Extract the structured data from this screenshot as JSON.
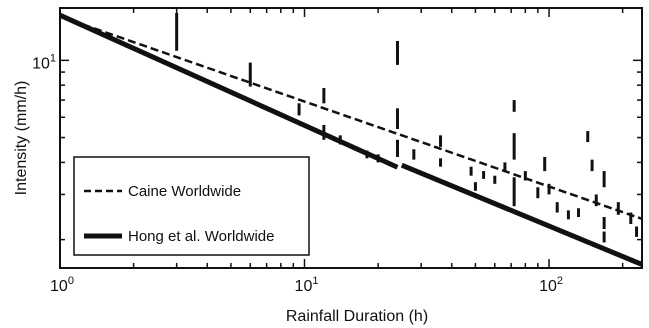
{
  "chart_data": {
    "type": "scatter",
    "xlabel": "Rainfall Duration (h)",
    "ylabel": "Intensity (mm/h)",
    "x_scale": "log",
    "y_scale": "log",
    "xlim": [
      1,
      240
    ],
    "ylim": [
      1.55,
      16
    ],
    "x_ticks": [
      {
        "value": 1,
        "base": "10",
        "exp": "0"
      },
      {
        "value": 10,
        "base": "10",
        "exp": "1"
      },
      {
        "value": 100,
        "base": "10",
        "exp": "2"
      }
    ],
    "y_ticks": [
      {
        "value": 10,
        "base": "10",
        "exp": "1"
      }
    ],
    "y_minor_ticks": [
      2,
      3,
      4,
      5,
      6,
      7,
      8,
      9
    ],
    "legend": {
      "position": "bottom-left",
      "entries": [
        {
          "label": "Caine Worldwide",
          "style": "dashed"
        },
        {
          "label": "Hong et al. Worldwide",
          "style": "solid-thick"
        }
      ]
    },
    "series": [
      {
        "name": "Caine Worldwide",
        "style": "dashed",
        "x": [
          1,
          240
        ],
        "y": [
          14.82,
          2.41
        ]
      },
      {
        "name": "Hong et al. Worldwide",
        "style": "solid-thick",
        "segments": [
          {
            "x": [
              1,
              24
            ],
            "y": [
              15.0,
              3.83
            ]
          },
          {
            "x": [
              25,
              240
            ],
            "y": [
              3.9,
              1.6
            ]
          }
        ]
      }
    ],
    "events": [
      {
        "x": 3,
        "y_low": 10.9,
        "y_high": 15.3
      },
      {
        "x": 6,
        "y_low": 7.9,
        "y_high": 9.8
      },
      {
        "x": 9.5,
        "y_low": 6.1,
        "y_high": 6.8
      },
      {
        "x": 12,
        "y_low": 6.8,
        "y_high": 7.8
      },
      {
        "x": 12,
        "y_low": 4.9,
        "y_high": 5.6
      },
      {
        "x": 14,
        "y_low": 4.7,
        "y_high": 5.1
      },
      {
        "x": 18,
        "y_low": 4.15,
        "y_high": 4.45
      },
      {
        "x": 20,
        "y_low": 4.0,
        "y_high": 4.3
      },
      {
        "x": 24,
        "y_low": 9.6,
        "y_high": 11.9
      },
      {
        "x": 24,
        "y_low": 5.4,
        "y_high": 6.5
      },
      {
        "x": 24,
        "y_low": 4.2,
        "y_high": 4.9
      },
      {
        "x": 28,
        "y_low": 4.1,
        "y_high": 4.5
      },
      {
        "x": 36,
        "y_low": 4.6,
        "y_high": 5.1
      },
      {
        "x": 36,
        "y_low": 3.85,
        "y_high": 4.15
      },
      {
        "x": 48,
        "y_low": 3.55,
        "y_high": 3.85
      },
      {
        "x": 50,
        "y_low": 3.1,
        "y_high": 3.35
      },
      {
        "x": 54,
        "y_low": 3.45,
        "y_high": 3.7
      },
      {
        "x": 60,
        "y_low": 3.3,
        "y_high": 3.55
      },
      {
        "x": 66,
        "y_low": 3.7,
        "y_high": 4.0
      },
      {
        "x": 72,
        "y_low": 6.3,
        "y_high": 7.0
      },
      {
        "x": 72,
        "y_low": 4.1,
        "y_high": 5.2
      },
      {
        "x": 72,
        "y_low": 2.7,
        "y_high": 3.5
      },
      {
        "x": 80,
        "y_low": 3.4,
        "y_high": 3.7
      },
      {
        "x": 90,
        "y_low": 2.9,
        "y_high": 3.2
      },
      {
        "x": 96,
        "y_low": 3.7,
        "y_high": 4.2
      },
      {
        "x": 100,
        "y_low": 3.0,
        "y_high": 3.3
      },
      {
        "x": 108,
        "y_low": 2.55,
        "y_high": 2.8
      },
      {
        "x": 120,
        "y_low": 2.4,
        "y_high": 2.6
      },
      {
        "x": 132,
        "y_low": 2.45,
        "y_high": 2.65
      },
      {
        "x": 144,
        "y_low": 4.8,
        "y_high": 5.3
      },
      {
        "x": 150,
        "y_low": 3.7,
        "y_high": 4.1
      },
      {
        "x": 156,
        "y_low": 2.7,
        "y_high": 3.0
      },
      {
        "x": 168,
        "y_low": 3.2,
        "y_high": 3.7
      },
      {
        "x": 168,
        "y_low": 2.2,
        "y_high": 2.45
      },
      {
        "x": 168,
        "y_low": 1.95,
        "y_high": 2.15
      },
      {
        "x": 192,
        "y_low": 2.5,
        "y_high": 2.8
      },
      {
        "x": 216,
        "y_low": 2.3,
        "y_high": 2.55
      },
      {
        "x": 228,
        "y_low": 2.05,
        "y_high": 2.25
      }
    ]
  }
}
